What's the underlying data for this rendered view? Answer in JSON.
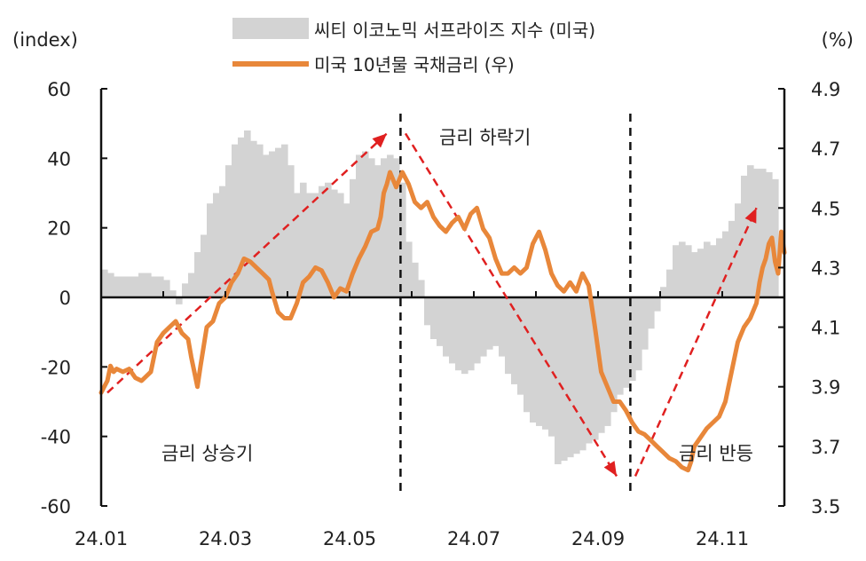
{
  "chart_data": {
    "type": "bar+line",
    "left_axis": {
      "unit": "(index)",
      "ticks": [
        60,
        40,
        20,
        0,
        -20,
        -40,
        -60
      ],
      "range": [
        -60,
        60
      ]
    },
    "right_axis": {
      "unit": "(%)",
      "ticks": [
        4.9,
        4.7,
        4.5,
        4.3,
        4.1,
        3.9,
        3.7,
        3.5
      ],
      "range": [
        3.5,
        4.9
      ]
    },
    "x_axis": {
      "ticks": [
        "24.01",
        "24.03",
        "24.05",
        "24.07",
        "24.09",
        "24.11"
      ],
      "range": [
        "24.01",
        "24.12"
      ]
    },
    "legend": [
      {
        "label": "씨티 이코노믹 서프라이즈 지수 (미국)",
        "kind": "area",
        "color": "#d3d3d3"
      },
      {
        "label": "미국 10년물 국채금리 (우)",
        "kind": "line",
        "color": "#e8873a"
      }
    ],
    "colors": {
      "bars": "#d3d3d3",
      "line": "#e8873a",
      "trend": "#e02020",
      "axis": "#111111"
    },
    "annotations": [
      "금리 상승기",
      "금리 하락기",
      "금리 반등"
    ],
    "dividers_x": [
      4.82,
      8.52
    ],
    "trend_arrows": [
      {
        "from": [
          0.1,
          3.88
        ],
        "to": [
          4.6,
          4.75
        ]
      },
      {
        "from": [
          4.9,
          4.75
        ],
        "to": [
          8.3,
          3.6
        ]
      },
      {
        "from": [
          8.6,
          3.6
        ],
        "to": [
          10.55,
          4.5
        ]
      }
    ],
    "surprise_index": [
      [
        0.0,
        8
      ],
      [
        0.1,
        7
      ],
      [
        0.2,
        6
      ],
      [
        0.4,
        6
      ],
      [
        0.6,
        7
      ],
      [
        0.8,
        6
      ],
      [
        1.0,
        5
      ],
      [
        1.1,
        2
      ],
      [
        1.2,
        -2
      ],
      [
        1.3,
        4
      ],
      [
        1.4,
        7
      ],
      [
        1.5,
        13
      ],
      [
        1.6,
        18
      ],
      [
        1.7,
        27
      ],
      [
        1.8,
        30
      ],
      [
        1.9,
        32
      ],
      [
        2.0,
        38
      ],
      [
        2.1,
        44
      ],
      [
        2.2,
        46
      ],
      [
        2.3,
        48
      ],
      [
        2.4,
        45
      ],
      [
        2.5,
        44
      ],
      [
        2.6,
        41
      ],
      [
        2.7,
        42
      ],
      [
        2.8,
        43
      ],
      [
        2.9,
        44
      ],
      [
        3.0,
        38
      ],
      [
        3.1,
        30
      ],
      [
        3.2,
        33
      ],
      [
        3.3,
        30
      ],
      [
        3.4,
        30
      ],
      [
        3.5,
        32
      ],
      [
        3.6,
        33
      ],
      [
        3.7,
        31
      ],
      [
        3.8,
        30
      ],
      [
        3.9,
        27
      ],
      [
        4.0,
        34
      ],
      [
        4.1,
        41
      ],
      [
        4.2,
        42
      ],
      [
        4.3,
        40
      ],
      [
        4.4,
        38
      ],
      [
        4.5,
        40
      ],
      [
        4.6,
        41
      ],
      [
        4.7,
        40
      ],
      [
        4.8,
        33
      ],
      [
        4.9,
        16
      ],
      [
        5.0,
        10
      ],
      [
        5.1,
        5
      ],
      [
        5.2,
        -8
      ],
      [
        5.3,
        -12
      ],
      [
        5.4,
        -14
      ],
      [
        5.5,
        -17
      ],
      [
        5.6,
        -19
      ],
      [
        5.7,
        -21
      ],
      [
        5.8,
        -22
      ],
      [
        5.9,
        -21
      ],
      [
        6.0,
        -19
      ],
      [
        6.1,
        -17
      ],
      [
        6.2,
        -15
      ],
      [
        6.3,
        -14
      ],
      [
        6.4,
        -17
      ],
      [
        6.5,
        -22
      ],
      [
        6.6,
        -25
      ],
      [
        6.7,
        -28
      ],
      [
        6.8,
        -33
      ],
      [
        6.9,
        -36
      ],
      [
        7.0,
        -37
      ],
      [
        7.1,
        -38
      ],
      [
        7.2,
        -40
      ],
      [
        7.3,
        -48
      ],
      [
        7.4,
        -47
      ],
      [
        7.5,
        -46
      ],
      [
        7.6,
        -45
      ],
      [
        7.7,
        -44
      ],
      [
        7.8,
        -42
      ],
      [
        7.9,
        -41
      ],
      [
        8.0,
        -39
      ],
      [
        8.1,
        -37
      ],
      [
        8.2,
        -33
      ],
      [
        8.3,
        -28
      ],
      [
        8.4,
        -26
      ],
      [
        8.5,
        -24
      ],
      [
        8.6,
        -21
      ],
      [
        8.7,
        -15
      ],
      [
        8.8,
        -9
      ],
      [
        8.9,
        -4
      ],
      [
        9.0,
        3
      ],
      [
        9.1,
        8
      ],
      [
        9.2,
        15
      ],
      [
        9.3,
        16
      ],
      [
        9.4,
        15
      ],
      [
        9.5,
        13
      ],
      [
        9.6,
        14
      ],
      [
        9.7,
        16
      ],
      [
        9.8,
        15
      ],
      [
        9.9,
        17
      ],
      [
        10.0,
        19
      ],
      [
        10.1,
        22
      ],
      [
        10.2,
        27
      ],
      [
        10.3,
        35
      ],
      [
        10.4,
        38
      ],
      [
        10.5,
        37
      ],
      [
        10.6,
        37
      ],
      [
        10.7,
        36
      ],
      [
        10.8,
        34
      ]
    ],
    "treasury_10y": [
      [
        0.0,
        3.88
      ],
      [
        0.1,
        3.92
      ],
      [
        0.15,
        3.97
      ],
      [
        0.2,
        3.95
      ],
      [
        0.25,
        3.96
      ],
      [
        0.35,
        3.95
      ],
      [
        0.45,
        3.96
      ],
      [
        0.55,
        3.93
      ],
      [
        0.65,
        3.92
      ],
      [
        0.8,
        3.95
      ],
      [
        0.9,
        4.05
      ],
      [
        1.0,
        4.08
      ],
      [
        1.1,
        4.1
      ],
      [
        1.2,
        4.12
      ],
      [
        1.3,
        4.08
      ],
      [
        1.4,
        4.06
      ],
      [
        1.45,
        4.0
      ],
      [
        1.5,
        3.95
      ],
      [
        1.55,
        3.9
      ],
      [
        1.6,
        3.97
      ],
      [
        1.7,
        4.1
      ],
      [
        1.8,
        4.12
      ],
      [
        1.9,
        4.18
      ],
      [
        2.0,
        4.2
      ],
      [
        2.1,
        4.25
      ],
      [
        2.2,
        4.28
      ],
      [
        2.3,
        4.33
      ],
      [
        2.4,
        4.32
      ],
      [
        2.5,
        4.3
      ],
      [
        2.6,
        4.28
      ],
      [
        2.7,
        4.26
      ],
      [
        2.75,
        4.22
      ],
      [
        2.85,
        4.15
      ],
      [
        2.95,
        4.13
      ],
      [
        3.05,
        4.13
      ],
      [
        3.15,
        4.18
      ],
      [
        3.25,
        4.25
      ],
      [
        3.35,
        4.27
      ],
      [
        3.45,
        4.3
      ],
      [
        3.55,
        4.29
      ],
      [
        3.65,
        4.25
      ],
      [
        3.75,
        4.2
      ],
      [
        3.85,
        4.23
      ],
      [
        3.95,
        4.22
      ],
      [
        4.05,
        4.28
      ],
      [
        4.15,
        4.33
      ],
      [
        4.25,
        4.37
      ],
      [
        4.35,
        4.42
      ],
      [
        4.45,
        4.43
      ],
      [
        4.5,
        4.47
      ],
      [
        4.55,
        4.55
      ],
      [
        4.6,
        4.58
      ],
      [
        4.65,
        4.62
      ],
      [
        4.75,
        4.57
      ],
      [
        4.85,
        4.62
      ],
      [
        4.95,
        4.58
      ],
      [
        5.05,
        4.52
      ],
      [
        5.15,
        4.5
      ],
      [
        5.25,
        4.52
      ],
      [
        5.35,
        4.47
      ],
      [
        5.45,
        4.44
      ],
      [
        5.55,
        4.42
      ],
      [
        5.65,
        4.45
      ],
      [
        5.75,
        4.47
      ],
      [
        5.85,
        4.43
      ],
      [
        5.95,
        4.48
      ],
      [
        6.05,
        4.5
      ],
      [
        6.15,
        4.43
      ],
      [
        6.25,
        4.4
      ],
      [
        6.35,
        4.33
      ],
      [
        6.45,
        4.28
      ],
      [
        6.55,
        4.28
      ],
      [
        6.65,
        4.3
      ],
      [
        6.75,
        4.28
      ],
      [
        6.85,
        4.3
      ],
      [
        6.95,
        4.38
      ],
      [
        7.05,
        4.42
      ],
      [
        7.15,
        4.36
      ],
      [
        7.25,
        4.28
      ],
      [
        7.35,
        4.24
      ],
      [
        7.45,
        4.22
      ],
      [
        7.55,
        4.25
      ],
      [
        7.65,
        4.22
      ],
      [
        7.75,
        4.28
      ],
      [
        7.85,
        4.24
      ],
      [
        7.95,
        4.1
      ],
      [
        8.05,
        3.95
      ],
      [
        8.15,
        3.9
      ],
      [
        8.25,
        3.85
      ],
      [
        8.35,
        3.85
      ],
      [
        8.45,
        3.82
      ],
      [
        8.55,
        3.78
      ],
      [
        8.65,
        3.75
      ],
      [
        8.75,
        3.74
      ],
      [
        8.85,
        3.72
      ],
      [
        8.95,
        3.7
      ],
      [
        9.05,
        3.68
      ],
      [
        9.15,
        3.66
      ],
      [
        9.25,
        3.65
      ],
      [
        9.35,
        3.63
      ],
      [
        9.45,
        3.62
      ],
      [
        9.5,
        3.65
      ],
      [
        9.55,
        3.7
      ],
      [
        9.65,
        3.73
      ],
      [
        9.75,
        3.76
      ],
      [
        9.85,
        3.78
      ],
      [
        9.95,
        3.8
      ],
      [
        10.05,
        3.85
      ],
      [
        10.15,
        3.95
      ],
      [
        10.25,
        4.05
      ],
      [
        10.35,
        4.1
      ],
      [
        10.45,
        4.13
      ],
      [
        10.55,
        4.18
      ],
      [
        10.6,
        4.25
      ],
      [
        10.65,
        4.3
      ],
      [
        10.7,
        4.33
      ],
      [
        10.75,
        4.38
      ],
      [
        10.8,
        4.4
      ],
      [
        10.85,
        4.32
      ],
      [
        10.9,
        4.28
      ],
      [
        10.95,
        4.42
      ],
      [
        11.0,
        4.35
      ]
    ]
  }
}
